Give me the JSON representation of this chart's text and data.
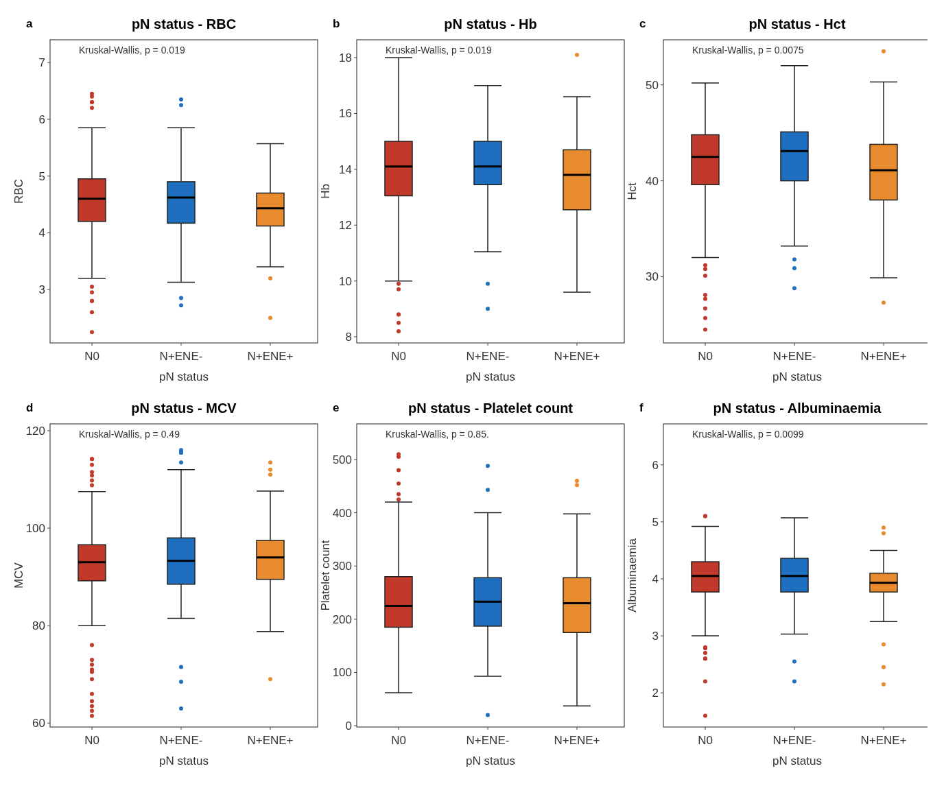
{
  "chart_data": [
    {
      "type": "box",
      "title": "pN status - RBC",
      "xlabel": "pN status",
      "ylabel": "RBC",
      "categories": [
        "N0",
        "N+ENE-",
        "N+ENE+"
      ],
      "colors": [
        "#c0392b",
        "#1f6fc0",
        "#e88b2e"
      ],
      "ylim": [
        2.06,
        7.4
      ],
      "yticks": [
        3,
        4,
        5,
        6,
        7
      ],
      "annotations": [
        "a",
        "Kruskal-Wallis, p = 0.019"
      ],
      "boxes": [
        {
          "low": 3.2,
          "q1": 4.2,
          "median": 4.6,
          "q3": 4.95,
          "high": 5.85,
          "outliers": [
            6.45,
            6.4,
            6.3,
            6.3,
            6.2,
            3.05,
            2.95,
            2.8,
            2.8,
            2.6,
            2.25
          ]
        },
        {
          "low": 3.13,
          "q1": 4.17,
          "median": 4.62,
          "q3": 4.9,
          "high": 5.85,
          "outliers": [
            6.35,
            6.25,
            2.85,
            2.72
          ]
        },
        {
          "low": 3.4,
          "q1": 4.12,
          "median": 4.43,
          "q3": 4.7,
          "high": 5.57,
          "outliers": [
            3.2,
            2.5
          ]
        }
      ]
    },
    {
      "type": "box",
      "title": "pN status - Hb",
      "xlabel": "pN status",
      "ylabel": "Hb",
      "categories": [
        "N0",
        "N+ENE-",
        "N+ENE+"
      ],
      "colors": [
        "#c0392b",
        "#1f6fc0",
        "#e88b2e"
      ],
      "ylim": [
        7.78,
        18.64
      ],
      "yticks": [
        8,
        10,
        12,
        14,
        16,
        18
      ],
      "annotations": [
        "b",
        "Kruskal-Wallis, p = 0.019"
      ],
      "boxes": [
        {
          "low": 10,
          "q1": 13.05,
          "median": 14.1,
          "q3": 15,
          "high": 18,
          "outliers": [
            9.9,
            9.7,
            8.8,
            8.8,
            8.5,
            8.2
          ]
        },
        {
          "low": 11.05,
          "q1": 13.45,
          "median": 14.1,
          "q3": 15,
          "high": 17,
          "outliers": [
            9.9,
            9.0
          ]
        },
        {
          "low": 9.6,
          "q1": 12.55,
          "median": 13.8,
          "q3": 14.7,
          "high": 16.6,
          "outliers": [
            18.1
          ]
        }
      ]
    },
    {
      "type": "box",
      "title": "pN status - Hct",
      "xlabel": "pN status",
      "ylabel": "Hct",
      "categories": [
        "N0",
        "N+ENE-",
        "N+ENE+"
      ],
      "colors": [
        "#c0392b",
        "#1f6fc0",
        "#e88b2e"
      ],
      "ylim": [
        23.1,
        54.7
      ],
      "yticks": [
        30,
        40,
        50
      ],
      "annotations": [
        "c",
        "Kruskal-Wallis, p = 0.0075"
      ],
      "boxes": [
        {
          "low": 32,
          "q1": 39.6,
          "median": 42.5,
          "q3": 44.8,
          "high": 50.2,
          "outliers": [
            31.2,
            30.8,
            30.1,
            28.1,
            27.7,
            26.7,
            25.7,
            24.5
          ]
        },
        {
          "low": 33.2,
          "q1": 40,
          "median": 43.1,
          "q3": 45.1,
          "high": 52,
          "outliers": [
            31.8,
            30.9,
            28.8
          ]
        },
        {
          "low": 29.9,
          "q1": 38,
          "median": 41.1,
          "q3": 43.8,
          "high": 50.3,
          "outliers": [
            53.5,
            27.3
          ]
        }
      ]
    },
    {
      "type": "box",
      "title": "pN status - MCV",
      "xlabel": "pN status",
      "ylabel": "MCV",
      "categories": [
        "N0",
        "N+ENE-",
        "N+ENE+"
      ],
      "colors": [
        "#c0392b",
        "#1f6fc0",
        "#e88b2e"
      ],
      "ylim": [
        59.2,
        121.4
      ],
      "yticks": [
        60,
        80,
        100,
        120
      ],
      "annotations": [
        "d",
        "Kruskal-Wallis, p = 0.49"
      ],
      "boxes": [
        {
          "low": 80,
          "q1": 89.2,
          "median": 93,
          "q3": 96.6,
          "high": 107.5,
          "outliers": [
            114.2,
            114.2,
            113,
            111.5,
            110.8,
            109.8,
            108.8,
            76,
            73,
            72,
            71,
            70.5,
            69,
            66,
            64.5,
            63.5,
            62.5,
            61.5
          ]
        },
        {
          "low": 81.5,
          "q1": 88.5,
          "median": 93.3,
          "q3": 98,
          "high": 112,
          "outliers": [
            116,
            115.5,
            115.5,
            113.5,
            71.5,
            68.5,
            63
          ]
        },
        {
          "low": 78.8,
          "q1": 89.5,
          "median": 94,
          "q3": 97.5,
          "high": 107.6,
          "outliers": [
            113.5,
            112,
            111,
            69
          ]
        }
      ]
    },
    {
      "type": "box",
      "title": "pN status - Platelet count",
      "xlabel": "pN status",
      "ylabel": "Platelet count",
      "categories": [
        "N0",
        "N+ENE-",
        "N+ENE+"
      ],
      "colors": [
        "#c0392b",
        "#1f6fc0",
        "#e88b2e"
      ],
      "ylim": [
        -2.5,
        567
      ],
      "yticks": [
        0,
        100,
        200,
        300,
        400,
        500
      ],
      "annotations": [
        "e",
        "Kruskal-Wallis, p = 0.85."
      ],
      "boxes": [
        {
          "low": 62,
          "q1": 185,
          "median": 225,
          "q3": 280,
          "high": 420,
          "outliers": [
            510,
            505,
            480,
            455,
            435,
            425
          ]
        },
        {
          "low": 93,
          "q1": 187,
          "median": 233,
          "q3": 278,
          "high": 400,
          "outliers": [
            488,
            443,
            20
          ]
        },
        {
          "low": 37,
          "q1": 175,
          "median": 230,
          "q3": 278,
          "high": 398,
          "outliers": [
            460,
            452
          ]
        }
      ]
    },
    {
      "type": "box",
      "title": "pN status - Albuminaemia",
      "xlabel": "pN status",
      "ylabel": "Albuminaemia",
      "categories": [
        "N0",
        "N+ENE-",
        "N+ENE+"
      ],
      "colors": [
        "#c0392b",
        "#1f6fc0",
        "#e88b2e"
      ],
      "ylim": [
        1.4,
        6.72
      ],
      "yticks": [
        2,
        3,
        4,
        5,
        6
      ],
      "annotations": [
        "f",
        "Kruskal-Wallis, p = 0.0099"
      ],
      "boxes": [
        {
          "low": 3.0,
          "q1": 3.77,
          "median": 4.05,
          "q3": 4.3,
          "high": 4.92,
          "outliers": [
            5.1,
            5.1,
            2.8,
            2.78,
            2.7,
            2.6,
            2.6,
            2.2,
            1.6
          ]
        },
        {
          "low": 3.03,
          "q1": 3.77,
          "median": 4.05,
          "q3": 4.36,
          "high": 5.07,
          "outliers": [
            2.55,
            2.2
          ]
        },
        {
          "low": 3.25,
          "q1": 3.77,
          "median": 3.93,
          "q3": 4.1,
          "high": 4.5,
          "outliers": [
            4.9,
            4.8,
            2.85,
            2.45,
            2.15
          ]
        }
      ]
    }
  ]
}
